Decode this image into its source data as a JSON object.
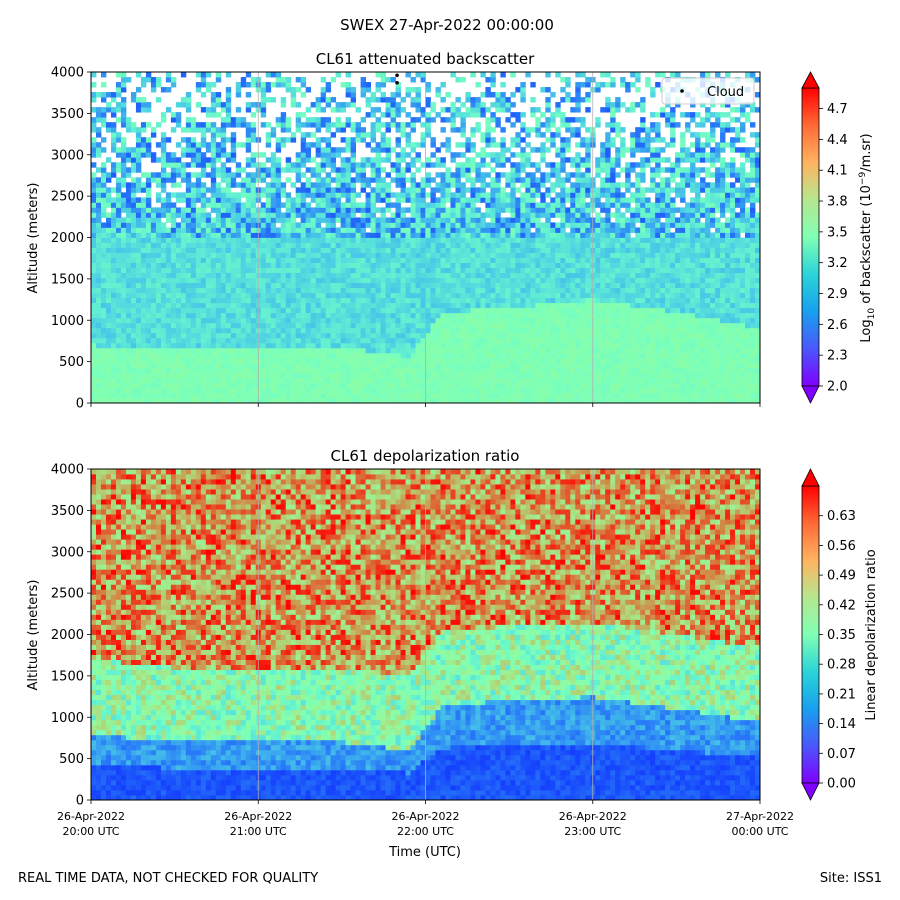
{
  "figure": {
    "suptitle": "SWEX 27-Apr-2022 00:00:00",
    "footer_left": "REAL TIME DATA, NOT CHECKED FOR QUALITY",
    "footer_right": "Site: ISS1"
  },
  "chart_data": [
    {
      "type": "heatmap",
      "title": "CL61 attenuated backscatter",
      "xlabel": "",
      "ylabel": "Altitude (meters)",
      "ylim": [
        0,
        4000
      ],
      "yticks": [
        0,
        500,
        1000,
        1500,
        2000,
        2500,
        3000,
        3500,
        4000
      ],
      "xlim_hours_utc": [
        20,
        24
      ],
      "xtick_hours": [
        20,
        21,
        22,
        23,
        24
      ],
      "show_xtick_labels": false,
      "vertical_grid": true,
      "colormap": "rainbow",
      "colorbar": {
        "label_prefix": "Log",
        "label_sub": "10",
        "label_mid": " of backscatter (10",
        "label_sup": "−9",
        "label_suffix": "/m.sr)",
        "min": 2.0,
        "max": 4.9,
        "ticks": [
          "2.0",
          "2.3",
          "2.6",
          "2.9",
          "3.2",
          "3.5",
          "3.8",
          "4.1",
          "4.4",
          "4.7"
        ],
        "extend": "both"
      },
      "legend": {
        "entries": [
          "Cloud"
        ],
        "placement": "top-right"
      },
      "cloud_points": [
        {
          "hour": 21.83,
          "altitude": 3960
        },
        {
          "hour": 21.83,
          "altitude": 3870
        }
      ],
      "boundary_layer_top": [
        {
          "hour": 20.0,
          "altitude": 700
        },
        {
          "hour": 20.5,
          "altitude": 640
        },
        {
          "hour": 21.0,
          "altitude": 650
        },
        {
          "hour": 21.5,
          "altitude": 680
        },
        {
          "hour": 21.9,
          "altitude": 560
        },
        {
          "hour": 22.1,
          "altitude": 1100
        },
        {
          "hour": 22.5,
          "altitude": 1150
        },
        {
          "hour": 23.0,
          "altitude": 1250
        },
        {
          "hour": 23.5,
          "altitude": 1100
        },
        {
          "hour": 24.0,
          "altitude": 900
        }
      ]
    },
    {
      "type": "heatmap",
      "title": "CL61 depolarization ratio",
      "xlabel": "Time (UTC)",
      "ylabel": "Altitude (meters)",
      "ylim": [
        0,
        4000
      ],
      "yticks": [
        0,
        500,
        1000,
        1500,
        2000,
        2500,
        3000,
        3500,
        4000
      ],
      "xlim_hours_utc": [
        20,
        24
      ],
      "xtick_hours": [
        20,
        21,
        22,
        23,
        24
      ],
      "xtick_labels": [
        [
          "26-Apr-2022",
          "20:00 UTC"
        ],
        [
          "26-Apr-2022",
          "21:00 UTC"
        ],
        [
          "26-Apr-2022",
          "22:00 UTC"
        ],
        [
          "26-Apr-2022",
          "23:00 UTC"
        ],
        [
          "27-Apr-2022",
          "00:00 UTC"
        ]
      ],
      "show_xtick_labels": true,
      "vertical_grid": true,
      "colormap": "rainbow",
      "colorbar": {
        "label": "Linear depolarization ratio",
        "min": 0.0,
        "max": 0.7,
        "ticks": [
          "0.00",
          "0.07",
          "0.14",
          "0.21",
          "0.28",
          "0.35",
          "0.42",
          "0.49",
          "0.56",
          "0.63"
        ],
        "extend": "both"
      },
      "boundary_layer_top": [
        {
          "hour": 20.0,
          "altitude": 800
        },
        {
          "hour": 20.5,
          "altitude": 700
        },
        {
          "hour": 21.0,
          "altitude": 700
        },
        {
          "hour": 21.5,
          "altitude": 700
        },
        {
          "hour": 21.9,
          "altitude": 600
        },
        {
          "hour": 22.1,
          "altitude": 1150
        },
        {
          "hour": 22.5,
          "altitude": 1200
        },
        {
          "hour": 23.0,
          "altitude": 1250
        },
        {
          "hour": 23.5,
          "altitude": 1100
        },
        {
          "hour": 24.0,
          "altitude": 950
        }
      ]
    }
  ]
}
